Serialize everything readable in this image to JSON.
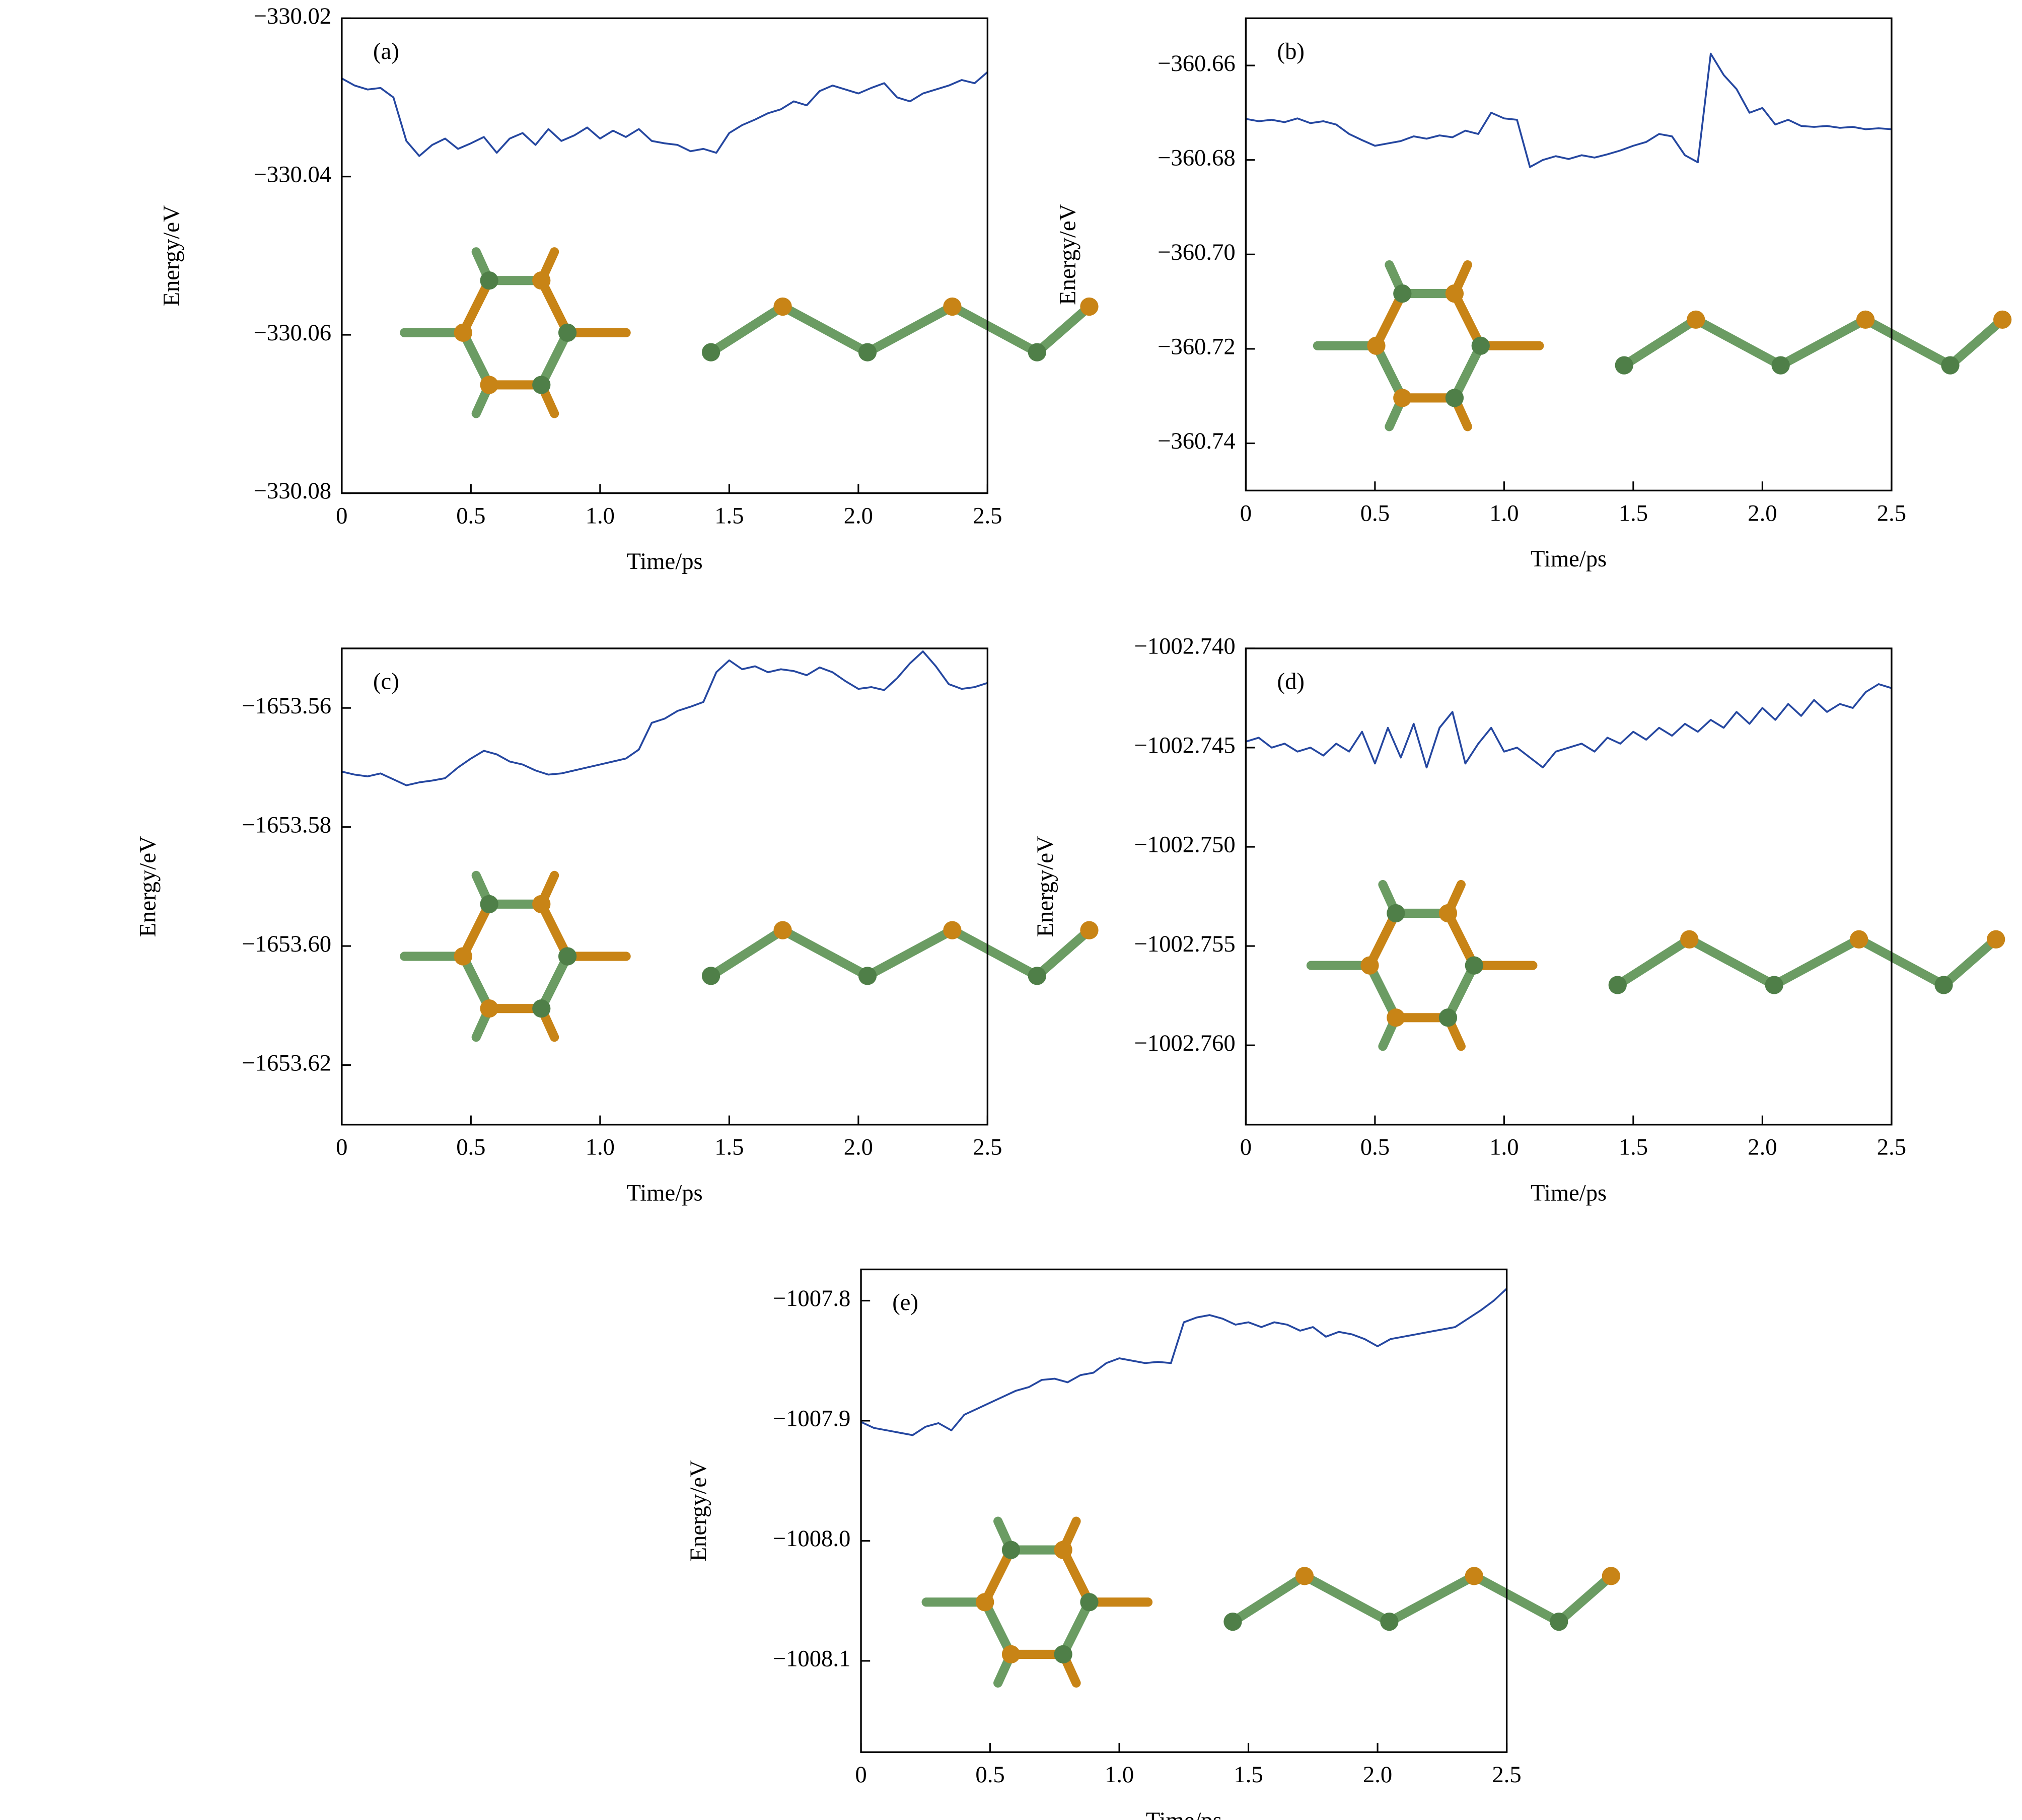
{
  "chart_data": [
    {
      "type": "line",
      "panel_label": "(a)",
      "x_label": "Time/ps",
      "y_label": "Energy/eV",
      "color": "#2547a0",
      "x": [
        0,
        0.05,
        0.1,
        0.15,
        0.2,
        0.25,
        0.3,
        0.35,
        0.4,
        0.45,
        0.5,
        0.55,
        0.6,
        0.65,
        0.7,
        0.75,
        0.8,
        0.85,
        0.9,
        0.95,
        1,
        1.05,
        1.1,
        1.15,
        1.2,
        1.25,
        1.3,
        1.35,
        1.4,
        1.45,
        1.5,
        1.55,
        1.6,
        1.65,
        1.7,
        1.75,
        1.8,
        1.85,
        1.9,
        1.95,
        2,
        2.05,
        2.1,
        2.15,
        2.2,
        2.25,
        2.3,
        2.35,
        2.4,
        2.45,
        2.5
      ],
      "values": [
        -330.0276,
        -330.0285,
        -330.029,
        -330.0288,
        -330.03,
        -330.0355,
        -330.0374,
        -330.036,
        -330.0352,
        -330.0365,
        -330.0358,
        -330.035,
        -330.037,
        -330.0352,
        -330.0345,
        -330.036,
        -330.034,
        -330.0355,
        -330.0348,
        -330.0338,
        -330.0352,
        -330.0342,
        -330.035,
        -330.034,
        -330.0355,
        -330.0358,
        -330.036,
        -330.0368,
        -330.0365,
        -330.037,
        -330.0345,
        -330.0335,
        -330.0328,
        -330.032,
        -330.0315,
        -330.0305,
        -330.031,
        -330.0292,
        -330.0285,
        -330.029,
        -330.0295,
        -330.0288,
        -330.0282,
        -330.03,
        -330.0305,
        -330.0295,
        -330.029,
        -330.0285,
        -330.0278,
        -330.0282,
        -330.0268
      ],
      "xlim": [
        0,
        2.5
      ],
      "xticks": [
        0,
        0.5,
        {
          "value": 1,
          "label": "1.0"
        },
        1.5,
        {
          "value": 2,
          "label": "2.0"
        },
        2.5
      ],
      "ylim": [
        -330.08,
        -330.02
      ],
      "yticks": [
        {
          "value": -330.02,
          "label": "−330.02"
        },
        {
          "value": -330.04,
          "label": "−330.04"
        },
        {
          "value": -330.06,
          "label": "−330.06"
        },
        {
          "value": -330.08,
          "label": "−330.08"
        }
      ]
    },
    {
      "type": "line",
      "panel_label": "(b)",
      "x_label": "Time/ps",
      "y_label": "Energy/eV",
      "color": "#2547a0",
      "x": [
        0,
        0.05,
        0.1,
        0.15,
        0.2,
        0.25,
        0.3,
        0.35,
        0.4,
        0.45,
        0.5,
        0.55,
        0.6,
        0.65,
        0.7,
        0.75,
        0.8,
        0.85,
        0.9,
        0.95,
        1,
        1.05,
        1.1,
        1.15,
        1.2,
        1.25,
        1.3,
        1.35,
        1.4,
        1.45,
        1.5,
        1.55,
        1.6,
        1.65,
        1.7,
        1.75,
        1.8,
        1.85,
        1.9,
        1.95,
        2,
        2.05,
        2.1,
        2.15,
        2.2,
        2.25,
        2.3,
        2.35,
        2.4,
        2.45,
        2.5
      ],
      "values": [
        -360.6713,
        -360.6718,
        -360.6715,
        -360.672,
        -360.6712,
        -360.6722,
        -360.6718,
        -360.6725,
        -360.6745,
        -360.6758,
        -360.677,
        -360.6765,
        -360.676,
        -360.675,
        -360.6755,
        -360.6748,
        -360.6752,
        -360.6738,
        -360.6745,
        -360.67,
        -360.6712,
        -360.6715,
        -360.6815,
        -360.68,
        -360.6792,
        -360.6798,
        -360.679,
        -360.6795,
        -360.6788,
        -360.678,
        -360.677,
        -360.6762,
        -360.6745,
        -360.675,
        -360.679,
        -360.6805,
        -360.6575,
        -360.662,
        -360.665,
        -360.67,
        -360.669,
        -360.6725,
        -360.6715,
        -360.6728,
        -360.673,
        -360.6728,
        -360.6732,
        -360.673,
        -360.6735,
        -360.6733,
        -360.6735
      ],
      "xlim": [
        0,
        2.5
      ],
      "xticks": [
        0,
        0.5,
        {
          "value": 1,
          "label": "1.0"
        },
        1.5,
        {
          "value": 2,
          "label": "2.0"
        },
        2.5
      ],
      "ylim": [
        -360.75,
        -360.65
      ],
      "yticks": [
        {
          "value": -360.66,
          "label": "−360.66"
        },
        {
          "value": -360.68,
          "label": "−360.68"
        },
        {
          "value": -360.7,
          "label": "−360.70"
        },
        {
          "value": -360.72,
          "label": "−360.72"
        },
        {
          "value": -360.74,
          "label": "−360.74"
        }
      ]
    },
    {
      "type": "line",
      "panel_label": "(c)",
      "x_label": "Time/ps",
      "y_label": "Energy/eV",
      "color": "#2547a0",
      "x": [
        0,
        0.05,
        0.1,
        0.15,
        0.2,
        0.25,
        0.3,
        0.35,
        0.4,
        0.45,
        0.5,
        0.55,
        0.6,
        0.65,
        0.7,
        0.75,
        0.8,
        0.85,
        0.9,
        0.95,
        1,
        1.05,
        1.1,
        1.15,
        1.2,
        1.25,
        1.3,
        1.35,
        1.4,
        1.45,
        1.5,
        1.55,
        1.6,
        1.65,
        1.7,
        1.75,
        1.8,
        1.85,
        1.9,
        1.95,
        2,
        2.05,
        2.1,
        2.15,
        2.2,
        2.25,
        2.3,
        2.35,
        2.4,
        2.45,
        2.5
      ],
      "values": [
        -1653.5707,
        -1653.5712,
        -1653.5715,
        -1653.571,
        -1653.572,
        -1653.573,
        -1653.5725,
        -1653.5722,
        -1653.5718,
        -1653.57,
        -1653.5685,
        -1653.5672,
        -1653.5678,
        -1653.569,
        -1653.5695,
        -1653.5705,
        -1653.5712,
        -1653.571,
        -1653.5705,
        -1653.57,
        -1653.5695,
        -1653.569,
        -1653.5685,
        -1653.567,
        -1653.5625,
        -1653.5618,
        -1653.5605,
        -1653.5598,
        -1653.559,
        -1653.554,
        -1653.552,
        -1653.5535,
        -1653.553,
        -1653.554,
        -1653.5535,
        -1653.5538,
        -1653.5545,
        -1653.5532,
        -1653.554,
        -1653.5555,
        -1653.5568,
        -1653.5565,
        -1653.557,
        -1653.555,
        -1653.5525,
        -1653.5505,
        -1653.553,
        -1653.556,
        -1653.5568,
        -1653.5565,
        -1653.5558
      ],
      "xlim": [
        0,
        2.5
      ],
      "xticks": [
        0,
        0.5,
        {
          "value": 1,
          "label": "1.0"
        },
        1.5,
        {
          "value": 2,
          "label": "2.0"
        },
        2.5
      ],
      "ylim": [
        -1653.63,
        -1653.55
      ],
      "yticks": [
        {
          "value": -1653.56,
          "label": "−1653.56"
        },
        {
          "value": -1653.58,
          "label": "−1653.58"
        },
        {
          "value": -1653.6,
          "label": "−1653.60"
        },
        {
          "value": -1653.62,
          "label": "−1653.62"
        }
      ]
    },
    {
      "type": "line",
      "panel_label": "(d)",
      "x_label": "Time/ps",
      "y_label": "Energy/eV",
      "color": "#2547a0",
      "x": [
        0,
        0.05,
        0.1,
        0.15,
        0.2,
        0.25,
        0.3,
        0.35,
        0.4,
        0.45,
        0.5,
        0.55,
        0.6,
        0.65,
        0.7,
        0.75,
        0.8,
        0.85,
        0.9,
        0.95,
        1,
        1.05,
        1.1,
        1.15,
        1.2,
        1.25,
        1.3,
        1.35,
        1.4,
        1.45,
        1.5,
        1.55,
        1.6,
        1.65,
        1.7,
        1.75,
        1.8,
        1.85,
        1.9,
        1.95,
        2,
        2.05,
        2.1,
        2.15,
        2.2,
        2.25,
        2.3,
        2.35,
        2.4,
        2.45,
        2.5
      ],
      "values": [
        -1002.7447,
        -1002.7445,
        -1002.745,
        -1002.7448,
        -1002.7452,
        -1002.745,
        -1002.7454,
        -1002.7448,
        -1002.7452,
        -1002.7442,
        -1002.7458,
        -1002.744,
        -1002.7455,
        -1002.7438,
        -1002.746,
        -1002.744,
        -1002.7432,
        -1002.7458,
        -1002.7448,
        -1002.744,
        -1002.7452,
        -1002.745,
        -1002.7455,
        -1002.746,
        -1002.7452,
        -1002.745,
        -1002.7448,
        -1002.7452,
        -1002.7445,
        -1002.7448,
        -1002.7442,
        -1002.7446,
        -1002.744,
        -1002.7444,
        -1002.7438,
        -1002.7442,
        -1002.7436,
        -1002.744,
        -1002.7432,
        -1002.7438,
        -1002.743,
        -1002.7436,
        -1002.7428,
        -1002.7434,
        -1002.7426,
        -1002.7432,
        -1002.7428,
        -1002.743,
        -1002.7422,
        -1002.7418,
        -1002.742
      ],
      "xlim": [
        0,
        2.5
      ],
      "xticks": [
        0,
        0.5,
        {
          "value": 1,
          "label": "1.0"
        },
        1.5,
        {
          "value": 2,
          "label": "2.0"
        },
        2.5
      ],
      "ylim": [
        -1002.764,
        -1002.74
      ],
      "yticks": [
        {
          "value": -1002.74,
          "label": "−1002.740"
        },
        {
          "value": -1002.745,
          "label": "−1002.745"
        },
        {
          "value": -1002.75,
          "label": "−1002.750"
        },
        {
          "value": -1002.755,
          "label": "−1002.755"
        },
        {
          "value": -1002.76,
          "label": "−1002.760"
        }
      ]
    },
    {
      "type": "line",
      "panel_label": "(e)",
      "x_label": "Time/ps",
      "y_label": "Energy/eV",
      "color": "#2547a0",
      "x": [
        0,
        0.05,
        0.1,
        0.15,
        0.2,
        0.25,
        0.3,
        0.35,
        0.4,
        0.45,
        0.5,
        0.55,
        0.6,
        0.65,
        0.7,
        0.75,
        0.8,
        0.85,
        0.9,
        0.95,
        1,
        1.05,
        1.1,
        1.15,
        1.2,
        1.25,
        1.3,
        1.35,
        1.4,
        1.45,
        1.5,
        1.55,
        1.6,
        1.65,
        1.7,
        1.75,
        1.8,
        1.85,
        1.9,
        1.95,
        2,
        2.05,
        2.1,
        2.15,
        2.2,
        2.25,
        2.3,
        2.35,
        2.4,
        2.45,
        2.5
      ],
      "values": [
        -1007.901,
        -1007.906,
        -1007.908,
        -1007.91,
        -1007.912,
        -1007.905,
        -1007.902,
        -1007.908,
        -1007.895,
        -1007.89,
        -1007.885,
        -1007.88,
        -1007.875,
        -1007.872,
        -1007.866,
        -1007.865,
        -1007.868,
        -1007.862,
        -1007.86,
        -1007.852,
        -1007.848,
        -1007.85,
        -1007.852,
        -1007.851,
        -1007.852,
        -1007.818,
        -1007.814,
        -1007.812,
        -1007.815,
        -1007.82,
        -1007.818,
        -1007.822,
        -1007.818,
        -1007.82,
        -1007.825,
        -1007.822,
        -1007.83,
        -1007.826,
        -1007.828,
        -1007.832,
        -1007.838,
        -1007.832,
        -1007.83,
        -1007.828,
        -1007.826,
        -1007.824,
        -1007.822,
        -1007.815,
        -1007.808,
        -1007.8,
        -1007.79
      ],
      "xlim": [
        0,
        2.5
      ],
      "xticks": [
        0,
        0.5,
        {
          "value": 1,
          "label": "1.0"
        },
        1.5,
        {
          "value": 2,
          "label": "2.0"
        },
        2.5
      ],
      "ylim": [
        -1008.176,
        -1007.774
      ],
      "yticks": [
        {
          "value": -1007.8,
          "label": "−1007.8"
        },
        {
          "value": -1007.9,
          "label": "−1007.9"
        },
        {
          "value": -1008,
          "label": "−1008.0"
        },
        {
          "value": -1008.1,
          "label": "−1008.1"
        }
      ]
    }
  ]
}
